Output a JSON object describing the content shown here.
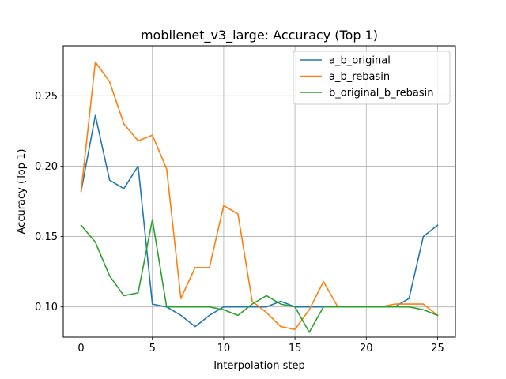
{
  "chart_data": {
    "type": "line",
    "title": "mobilenet_v3_large: Accuracy (Top 1)",
    "xlabel": "Interpolation step",
    "ylabel": "Accuracy (Top 1)",
    "xlim": [
      -1.25,
      26.25
    ],
    "ylim": [
      0.0785,
      0.2855
    ],
    "xticks": [
      0,
      5,
      10,
      15,
      20,
      25
    ],
    "yticks": [
      0.1,
      0.15,
      0.2,
      0.25
    ],
    "ytick_labels": [
      "0.10",
      "0.15",
      "0.20",
      "0.25"
    ],
    "grid": true,
    "legend_position": "top-right",
    "x": [
      0,
      1,
      2,
      3,
      4,
      5,
      6,
      7,
      8,
      9,
      10,
      11,
      12,
      13,
      14,
      15,
      16,
      17,
      18,
      19,
      20,
      21,
      22,
      23,
      24,
      25
    ],
    "series": [
      {
        "name": "a_b_original",
        "color": "#1f77b4",
        "values": [
          0.182,
          0.236,
          0.19,
          0.184,
          0.2,
          0.102,
          0.1,
          0.094,
          0.086,
          0.094,
          0.1,
          0.1,
          0.1,
          0.1,
          0.104,
          0.1,
          0.1,
          0.1,
          0.1,
          0.1,
          0.1,
          0.1,
          0.1,
          0.106,
          0.15,
          0.158
        ]
      },
      {
        "name": "a_b_rebasin",
        "color": "#ff7f0e",
        "values": [
          0.182,
          0.274,
          0.26,
          0.23,
          0.218,
          0.222,
          0.198,
          0.106,
          0.128,
          0.128,
          0.172,
          0.166,
          0.104,
          0.096,
          0.086,
          0.084,
          0.098,
          0.118,
          0.1,
          0.1,
          0.1,
          0.1,
          0.102,
          0.102,
          0.102,
          0.094
        ]
      },
      {
        "name": "b_original_b_rebasin",
        "color": "#2ca02c",
        "values": [
          0.158,
          0.146,
          0.122,
          0.108,
          0.11,
          0.162,
          0.1,
          0.1,
          0.1,
          0.1,
          0.098,
          0.094,
          0.102,
          0.108,
          0.102,
          0.1,
          0.082,
          0.1,
          0.1,
          0.1,
          0.1,
          0.1,
          0.1,
          0.1,
          0.098,
          0.094
        ]
      }
    ]
  }
}
